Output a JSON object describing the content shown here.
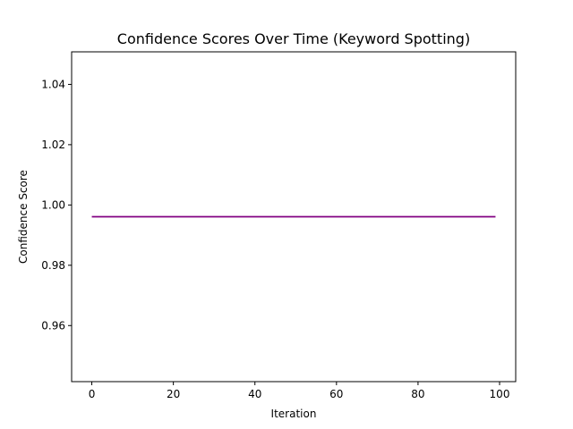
{
  "chart_data": {
    "type": "line",
    "title": "Confidence Scores Over Time (Keyword Spotting)",
    "xlabel": "Iteration",
    "ylabel": "Confidence Score",
    "xlim": [
      -4.95,
      103.95
    ],
    "ylim": [
      0.9414,
      1.0508
    ],
    "xticks": [
      0,
      20,
      40,
      60,
      80,
      100
    ],
    "xtick_labels": [
      "0",
      "20",
      "40",
      "60",
      "80",
      "100"
    ],
    "yticks": [
      0.96,
      0.98,
      1.0,
      1.02,
      1.04
    ],
    "ytick_labels": [
      "0.96",
      "0.98",
      "1.00",
      "1.02",
      "1.04"
    ],
    "grid": false,
    "series": [
      {
        "color": "#800080",
        "x": [
          0,
          99
        ],
        "values": [
          0.9961,
          0.9961
        ]
      }
    ]
  }
}
